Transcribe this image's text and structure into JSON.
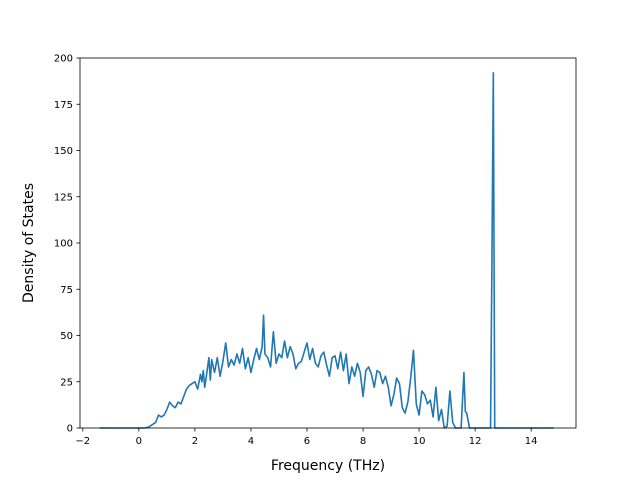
{
  "chart_data": {
    "type": "line",
    "xlabel": "Frequency (THz)",
    "ylabel": "Density of States",
    "xlim": [
      -2.1,
      15.6
    ],
    "ylim": [
      0,
      200
    ],
    "xticks": [
      -2,
      0,
      2,
      4,
      6,
      8,
      10,
      12,
      14
    ],
    "yticks": [
      0,
      25,
      50,
      75,
      100,
      125,
      150,
      175,
      200
    ],
    "grid": false,
    "legend": "none",
    "series": [
      {
        "color": "#1f77b4",
        "x": [
          -1.4,
          -0.2,
          0.0,
          0.2,
          0.35,
          0.5,
          0.6,
          0.7,
          0.8,
          0.9,
          1.0,
          1.1,
          1.2,
          1.3,
          1.4,
          1.5,
          1.6,
          1.7,
          1.8,
          1.9,
          2.0,
          2.1,
          2.2,
          2.25,
          2.3,
          2.35,
          2.4,
          2.5,
          2.55,
          2.6,
          2.7,
          2.8,
          2.9,
          3.0,
          3.1,
          3.2,
          3.3,
          3.4,
          3.5,
          3.6,
          3.7,
          3.8,
          3.9,
          4.0,
          4.1,
          4.2,
          4.3,
          4.4,
          4.45,
          4.5,
          4.6,
          4.7,
          4.8,
          4.9,
          5.0,
          5.1,
          5.2,
          5.3,
          5.4,
          5.5,
          5.6,
          5.7,
          5.8,
          5.9,
          6.0,
          6.1,
          6.2,
          6.3,
          6.4,
          6.5,
          6.6,
          6.7,
          6.8,
          6.9,
          7.0,
          7.1,
          7.2,
          7.3,
          7.4,
          7.5,
          7.6,
          7.7,
          7.8,
          7.9,
          8.0,
          8.1,
          8.2,
          8.3,
          8.4,
          8.5,
          8.6,
          8.7,
          8.8,
          8.9,
          9.0,
          9.1,
          9.2,
          9.3,
          9.4,
          9.5,
          9.6,
          9.7,
          9.8,
          9.9,
          9.95,
          10.0,
          10.1,
          10.2,
          10.3,
          10.4,
          10.5,
          10.6,
          10.7,
          10.8,
          10.9,
          11.0,
          11.1,
          11.2,
          11.3,
          11.4,
          11.5,
          11.6,
          11.65,
          11.7,
          11.8,
          11.9,
          12.0,
          12.1,
          12.2,
          12.3,
          12.4,
          12.5,
          12.55,
          12.6,
          12.65,
          12.7,
          12.75,
          12.8,
          12.9,
          13.0,
          14.8
        ],
        "y": [
          0,
          0,
          0,
          0,
          0.5,
          2,
          3,
          7,
          6,
          7,
          10,
          14,
          12,
          11,
          14,
          13,
          17,
          21,
          23,
          24,
          25,
          21,
          29,
          25,
          31,
          22,
          27,
          38,
          26,
          37,
          30,
          38,
          28,
          36,
          46,
          33,
          37,
          34,
          40,
          35,
          43,
          32,
          38,
          30,
          37,
          43,
          37,
          44,
          61,
          40,
          38,
          33,
          52,
          35,
          40,
          38,
          47,
          38,
          44,
          40,
          32,
          35,
          36,
          41,
          46,
          37,
          43,
          35,
          33,
          39,
          41,
          34,
          28,
          38,
          39,
          32,
          41,
          31,
          40,
          24,
          33,
          28,
          35,
          30,
          17,
          31,
          33,
          29,
          22,
          31,
          30,
          24,
          28,
          22,
          12,
          18,
          27,
          24,
          11,
          8,
          14,
          27,
          42,
          13,
          10,
          7,
          20,
          18,
          13,
          15,
          6,
          22,
          4,
          10,
          0,
          1,
          20,
          3,
          0,
          0,
          0,
          30,
          9,
          8,
          0,
          0,
          0,
          0,
          0,
          0,
          0,
          0,
          0,
          90,
          192,
          0,
          0,
          0,
          0,
          0,
          0
        ]
      }
    ]
  }
}
